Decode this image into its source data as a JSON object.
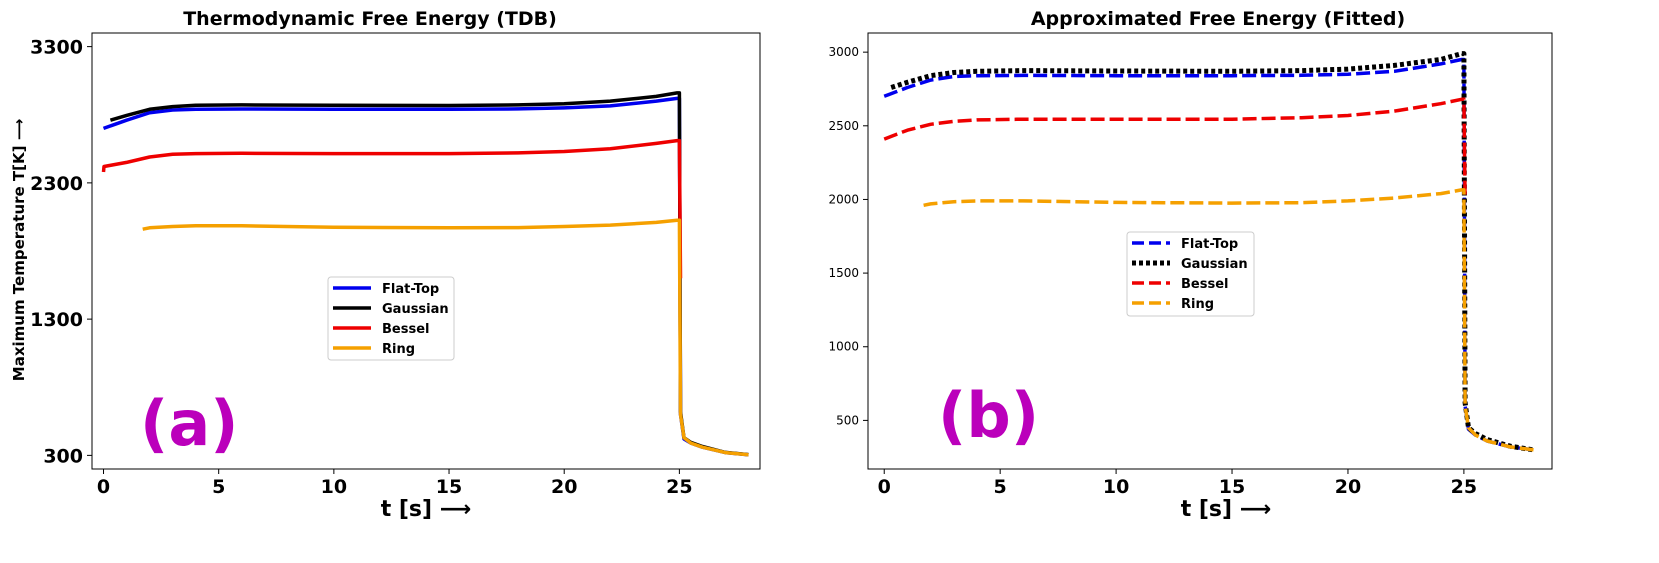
{
  "chart_data": [
    {
      "type": "line",
      "panel_label": "(a)",
      "title": "Thermodynamic Free Energy (TDB)",
      "xlabel": "t [s] ⟶",
      "ylabel": "Maximum Temperature T[K] ⟶",
      "xlim": [
        -0.5,
        28.5
      ],
      "ylim": [
        200,
        3400
      ],
      "xticks": [
        0,
        5,
        10,
        15,
        20,
        25
      ],
      "yticks": [
        300,
        1300,
        2300,
        3300
      ],
      "legend_position": "center",
      "line_style": "solid",
      "series": [
        {
          "name": "Flat-Top",
          "color": "#0000ee",
          "x": [
            0,
            0.5,
            1,
            2,
            3,
            4,
            6,
            10,
            15,
            18,
            20,
            22,
            24,
            24.9,
            25,
            25.05,
            25.2,
            25.5,
            26,
            27,
            28
          ],
          "y": [
            2700,
            2730,
            2760,
            2815,
            2835,
            2840,
            2842,
            2840,
            2840,
            2843,
            2850,
            2865,
            2900,
            2920,
            2920,
            600,
            420,
            390,
            360,
            320,
            305
          ]
        },
        {
          "name": "Gaussian",
          "color": "#000000",
          "x": [
            0.3,
            1,
            2,
            3,
            4,
            6,
            10,
            15,
            18,
            20,
            22,
            24,
            24.9,
            25,
            25.05,
            25.2,
            25.5,
            26,
            27,
            28
          ],
          "y": [
            2760,
            2795,
            2840,
            2860,
            2870,
            2872,
            2870,
            2868,
            2872,
            2880,
            2900,
            2935,
            2960,
            2960,
            620,
            430,
            395,
            365,
            322,
            306
          ]
        },
        {
          "name": "Bessel",
          "color": "#ee0000",
          "x": [
            0,
            0.02,
            1,
            2,
            3,
            4,
            6,
            10,
            15,
            18,
            20,
            22,
            24,
            24.9,
            25,
            25.05
          ],
          "y": [
            2380,
            2420,
            2450,
            2490,
            2510,
            2515,
            2517,
            2515,
            2515,
            2520,
            2530,
            2550,
            2590,
            2610,
            2610,
            1600
          ]
        },
        {
          "name": "Ring",
          "color": "#f5a000",
          "x": [
            1.7,
            2,
            3,
            4,
            6,
            10,
            15,
            18,
            20,
            22,
            24,
            24.9,
            25,
            25.05,
            25.2,
            25.5,
            26,
            27,
            28
          ],
          "y": [
            1960,
            1970,
            1980,
            1985,
            1985,
            1975,
            1970,
            1972,
            1980,
            1990,
            2010,
            2025,
            2025,
            600,
            430,
            390,
            360,
            320,
            305
          ]
        }
      ]
    },
    {
      "type": "line",
      "panel_label": "(b)",
      "title": "Approximated Free Energy (Fitted)",
      "xlabel": "t [s] ⟶",
      "ylabel": "",
      "xlim": [
        -0.7,
        28.8
      ],
      "ylim": [
        170,
        3130
      ],
      "xticks": [
        0,
        5,
        10,
        15,
        20,
        25
      ],
      "yticks": [
        500,
        1000,
        1500,
        2000,
        2500,
        3000
      ],
      "legend_position": "center",
      "line_style": "dashed",
      "series": [
        {
          "name": "Flat-Top",
          "color": "#0000ee",
          "dash": "dashed",
          "x": [
            0,
            0.5,
            1,
            2,
            3,
            4,
            6,
            10,
            15,
            18,
            20,
            22,
            24,
            24.9,
            25,
            25.05,
            25.2,
            25.5,
            26,
            27,
            28
          ],
          "y": [
            2700,
            2730,
            2760,
            2810,
            2835,
            2840,
            2842,
            2840,
            2840,
            2843,
            2850,
            2870,
            2920,
            2950,
            2950,
            600,
            440,
            400,
            360,
            320,
            300
          ]
        },
        {
          "name": "Gaussian",
          "color": "#000000",
          "dash": "dotted",
          "x": [
            0.3,
            1,
            2,
            3,
            4,
            6,
            10,
            15,
            18,
            20,
            22,
            24,
            24.9,
            25,
            25.05,
            25.2,
            25.5,
            26,
            27,
            28
          ],
          "y": [
            2760,
            2795,
            2840,
            2862,
            2870,
            2875,
            2872,
            2870,
            2875,
            2885,
            2910,
            2950,
            2990,
            2990,
            620,
            450,
            410,
            370,
            325,
            300
          ]
        },
        {
          "name": "Bessel",
          "color": "#ee0000",
          "dash": "dashed",
          "x": [
            0,
            0.5,
            1,
            2,
            3,
            4,
            6,
            10,
            15,
            18,
            20,
            22,
            24,
            24.9,
            25,
            25.05
          ],
          "y": [
            2410,
            2440,
            2470,
            2510,
            2530,
            2540,
            2545,
            2545,
            2545,
            2555,
            2570,
            2600,
            2650,
            2680,
            2680,
            2000
          ]
        },
        {
          "name": "Ring",
          "color": "#f5a000",
          "dash": "dashed",
          "x": [
            1.7,
            2,
            3,
            4,
            6,
            10,
            15,
            18,
            20,
            22,
            24,
            24.9,
            25,
            25.05,
            25.2,
            25.5,
            26,
            27,
            28
          ],
          "y": [
            1960,
            1970,
            1985,
            1990,
            1990,
            1980,
            1975,
            1978,
            1990,
            2010,
            2040,
            2065,
            2065,
            600,
            450,
            400,
            360,
            320,
            300
          ]
        }
      ]
    }
  ]
}
